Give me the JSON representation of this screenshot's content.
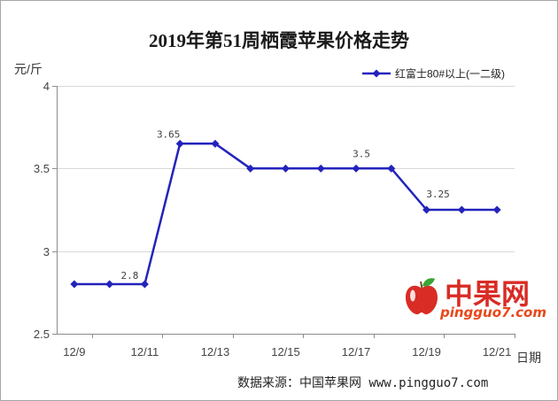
{
  "chart_data": {
    "type": "line",
    "title": "2019年第51周栖霞苹果价格走势",
    "ylabel": "元/斤",
    "xlabel": "日期",
    "x": [
      "12/9",
      "12/10",
      "12/11",
      "12/12",
      "12/13",
      "12/14",
      "12/15",
      "12/16",
      "12/17",
      "12/18",
      "12/19",
      "12/20",
      "12/21"
    ],
    "x_tick_labels": [
      "12/9",
      "12/11",
      "12/13",
      "12/15",
      "12/17",
      "12/19",
      "12/21"
    ],
    "y_ticks": [
      2.5,
      3,
      3.5,
      4
    ],
    "ylim": [
      2.5,
      4
    ],
    "grid": true,
    "legend_position": "top-right",
    "series": [
      {
        "name": "红富士80#以上(一二级)",
        "values": [
          2.8,
          2.8,
          2.8,
          3.65,
          3.65,
          3.5,
          3.5,
          3.5,
          3.5,
          3.5,
          3.25,
          3.25,
          3.25
        ],
        "color": "#2323bd",
        "marker": "diamond"
      }
    ],
    "data_labels": [
      {
        "x": "12/11",
        "text": "2.8"
      },
      {
        "x": "12/12",
        "text": "3.65"
      },
      {
        "x": "12/17",
        "text": "3.5"
      },
      {
        "x": "12/19",
        "text": "3.25"
      }
    ]
  },
  "footer": {
    "source": "数据来源：中国苹果网 www.pingguo7.com"
  },
  "watermark": {
    "brand": "中果网",
    "domain": "pingguo7.com",
    "icon": "apple-icon",
    "brand_color": "#d92c25",
    "domain_color": "#e8471b"
  }
}
